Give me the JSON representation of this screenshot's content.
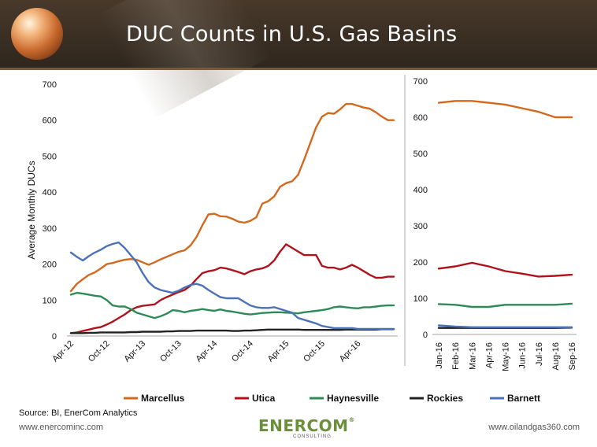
{
  "title": "DUC Counts in U.S. Gas Basins",
  "source": "Source: BI, EnerCom Analytics",
  "url_left": "www.enercominc.com",
  "url_right": "www.oilandgas360.com",
  "logo": {
    "name": "ENERCOM",
    "sub": "CONSULTING",
    "color": "#6b8f3a"
  },
  "colors": {
    "Marcellus": "#d2691e",
    "Utica": "#b0121b",
    "Haynesville": "#2e8b57",
    "Rockies": "#222222",
    "Barnett": "#4a72b8"
  },
  "chart_data": [
    {
      "type": "line",
      "ylabel": "Average Monthly DUCs",
      "xlabel": "",
      "ylim": [
        0,
        700
      ],
      "yticks": [
        "0",
        "100",
        "200",
        "300",
        "400",
        "500",
        "600",
        "700"
      ],
      "x_tick_labels": [
        "Apr-12",
        "Oct-12",
        "Apr-13",
        "Oct-13",
        "Apr-14",
        "Oct-14",
        "Apr-15",
        "Oct-15",
        "Apr-16"
      ],
      "x_start": "Apr-12",
      "x_end": "Sep-16",
      "grid": false,
      "legend_position": "bottom",
      "series": [
        {
          "name": "Marcellus",
          "color": "#d2691e",
          "values": [
            125,
            145,
            158,
            170,
            177,
            188,
            200,
            203,
            208,
            212,
            214,
            212,
            205,
            198,
            205,
            213,
            220,
            227,
            234,
            238,
            252,
            275,
            308,
            338,
            340,
            333,
            332,
            326,
            318,
            315,
            320,
            330,
            368,
            375,
            388,
            415,
            425,
            430,
            448,
            490,
            535,
            580,
            610,
            620,
            618,
            630,
            645,
            645,
            640,
            635,
            632,
            622,
            610,
            600,
            600
          ]
        },
        {
          "name": "Utica",
          "color": "#b0121b",
          "values": [
            8,
            10,
            14,
            18,
            22,
            25,
            32,
            40,
            50,
            60,
            72,
            80,
            84,
            86,
            88,
            100,
            108,
            115,
            122,
            128,
            140,
            158,
            175,
            180,
            183,
            190,
            188,
            183,
            178,
            172,
            180,
            185,
            188,
            195,
            210,
            235,
            255,
            245,
            235,
            225,
            225,
            225,
            195,
            190,
            190,
            185,
            190,
            198,
            190,
            180,
            170,
            162,
            162,
            165,
            165
          ]
        },
        {
          "name": "Haynesville",
          "color": "#2e8b57",
          "values": [
            115,
            120,
            118,
            115,
            112,
            110,
            100,
            85,
            82,
            82,
            75,
            65,
            60,
            55,
            50,
            55,
            62,
            72,
            70,
            66,
            70,
            72,
            75,
            72,
            70,
            74,
            70,
            68,
            65,
            62,
            60,
            62,
            64,
            65,
            66,
            66,
            65,
            64,
            63,
            66,
            68,
            70,
            72,
            75,
            80,
            82,
            80,
            78,
            77,
            80,
            80,
            82,
            84,
            85,
            85
          ]
        },
        {
          "name": "Rockies",
          "color": "#222222",
          "values": [
            8,
            8,
            8,
            9,
            9,
            10,
            10,
            10,
            10,
            10,
            11,
            11,
            12,
            12,
            12,
            12,
            13,
            13,
            14,
            14,
            14,
            15,
            15,
            15,
            15,
            15,
            15,
            14,
            14,
            15,
            15,
            16,
            17,
            18,
            18,
            18,
            18,
            18,
            18,
            17,
            17,
            17,
            17,
            17,
            17,
            17,
            18,
            18,
            18,
            18,
            18,
            18,
            19,
            19,
            19
          ]
        },
        {
          "name": "Barnett",
          "color": "#4a72b8",
          "values": [
            232,
            220,
            210,
            222,
            232,
            240,
            250,
            256,
            260,
            245,
            225,
            205,
            175,
            150,
            135,
            128,
            124,
            120,
            126,
            135,
            142,
            145,
            140,
            128,
            118,
            108,
            105,
            105,
            105,
            95,
            85,
            80,
            78,
            78,
            80,
            75,
            70,
            65,
            50,
            45,
            40,
            35,
            28,
            25,
            22,
            22,
            22,
            22,
            20,
            20,
            20,
            20,
            20,
            20,
            20
          ]
        }
      ]
    },
    {
      "type": "line",
      "ylim": [
        0,
        700
      ],
      "yticks": [
        "0",
        "100",
        "200",
        "300",
        "400",
        "500",
        "600",
        "700"
      ],
      "categories": [
        "Jan-16",
        "Feb-16",
        "Mar-16",
        "Apr-16",
        "May-16",
        "Jun-16",
        "Jul-16",
        "Aug-16",
        "Sep-16"
      ],
      "grid": false,
      "series": [
        {
          "name": "Marcellus",
          "color": "#d2691e",
          "values": [
            640,
            645,
            645,
            640,
            635,
            625,
            615,
            600,
            600
          ]
        },
        {
          "name": "Utica",
          "color": "#b0121b",
          "values": [
            182,
            188,
            198,
            188,
            175,
            168,
            160,
            162,
            165
          ]
        },
        {
          "name": "Haynesville",
          "color": "#2e8b57",
          "values": [
            84,
            82,
            76,
            76,
            82,
            82,
            82,
            82,
            85
          ]
        },
        {
          "name": "Rockies",
          "color": "#222222",
          "values": [
            18,
            18,
            18,
            18,
            18,
            18,
            18,
            18,
            19
          ]
        },
        {
          "name": "Barnett",
          "color": "#4a72b8",
          "values": [
            25,
            22,
            20,
            20,
            20,
            20,
            20,
            20,
            20
          ]
        }
      ]
    }
  ]
}
